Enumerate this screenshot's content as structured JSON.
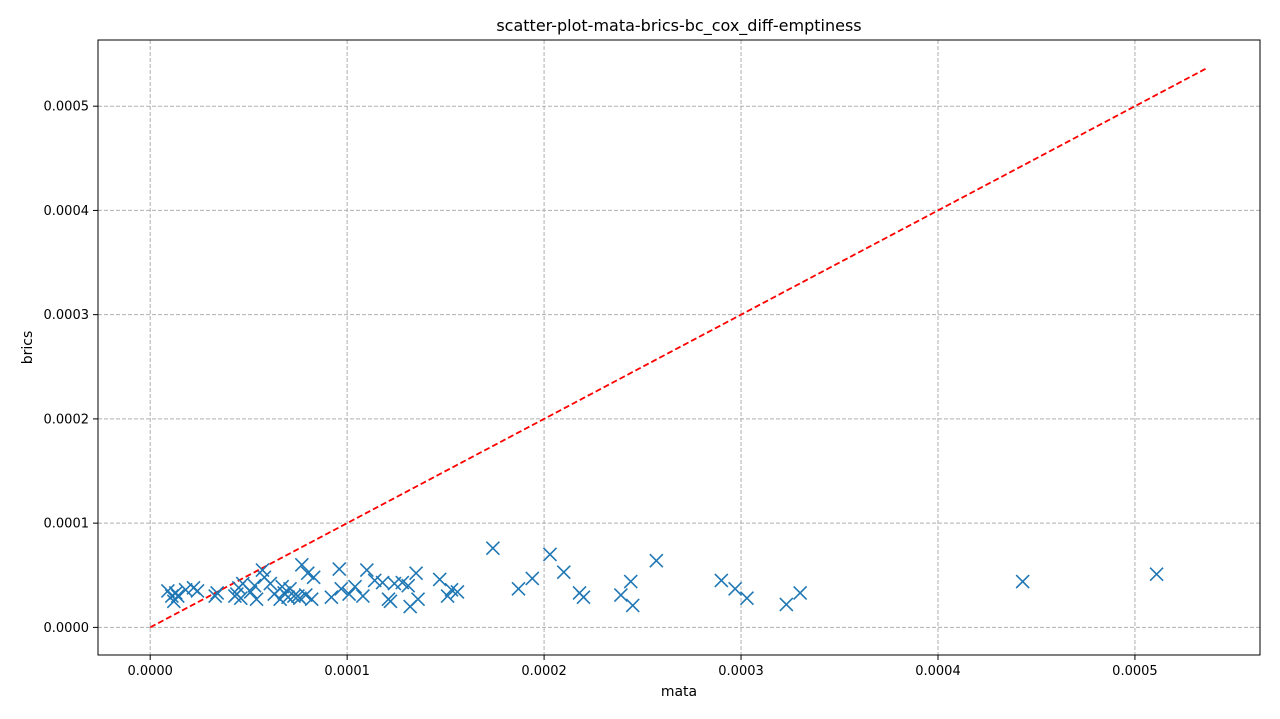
{
  "chart_data": {
    "type": "scatter",
    "title": "scatter-plot-mata-brics-bc_cox_diff-emptiness",
    "xlabel": "mata",
    "ylabel": "brics",
    "xlim": [
      -2.65e-05,
      0.0005635
    ],
    "ylim": [
      -2.65e-05,
      0.0005635
    ],
    "xticks": [
      0.0,
      0.0001,
      0.0002,
      0.0003,
      0.0004,
      0.0005
    ],
    "xtick_labels": [
      "0.0000",
      "0.0001",
      "0.0002",
      "0.0003",
      "0.0004",
      "0.0005"
    ],
    "yticks": [
      0.0,
      0.0001,
      0.0002,
      0.0003,
      0.0004,
      0.0005
    ],
    "ytick_labels": [
      "0.0000",
      "0.0001",
      "0.0002",
      "0.0003",
      "0.0004",
      "0.0005"
    ],
    "grid": true,
    "marker": "x",
    "colors": {
      "points": "#1f77b4",
      "reference_line": "#ff0000",
      "grid": "#b0b0b0"
    },
    "reference_line": {
      "style": "dashed",
      "x": [
        0.0,
        0.000537
      ],
      "y": [
        0.0,
        0.000537
      ]
    },
    "series": [
      {
        "x": [
          9e-06,
          1.1e-05,
          1.2e-05,
          1.3e-05,
          1.4e-05,
          1.8e-05,
          2.2e-05,
          2.4e-05,
          3.3e-05,
          3.4e-05,
          4.3e-05,
          4.4e-05,
          4.5e-05,
          4.6e-05,
          4.7e-05,
          5.1e-05,
          5.3e-05,
          5.4e-05,
          5.7e-05,
          5.8e-05,
          6.1e-05,
          6.3e-05,
          6.6e-05,
          6.7e-05,
          6.8e-05,
          7e-05,
          7.1e-05,
          7.3e-05,
          7.5e-05,
          7.6e-05,
          7.7e-05,
          7.9e-05,
          8e-05,
          8.2e-05,
          8.3e-05,
          9.2e-05,
          9.6e-05,
          9.7e-05,
          0.000101,
          0.000104,
          0.000108,
          0.00011,
          0.000114,
          0.000118,
          0.000121,
          0.000122,
          0.000124,
          0.000128,
          0.000131,
          0.000132,
          0.000135,
          0.000136,
          0.000147,
          0.000151,
          0.000153,
          0.000156,
          0.000174,
          0.000187,
          0.000194,
          0.000203,
          0.00021,
          0.000218,
          0.00022,
          0.000239,
          0.000244,
          0.000245,
          0.000257,
          0.00029,
          0.000297,
          0.000303,
          0.000323,
          0.00033,
          0.000443,
          0.000511
        ],
        "y": [
          3.5e-05,
          3e-05,
          2.5e-05,
          3.3e-05,
          3e-05,
          3.6e-05,
          3.8e-05,
          3.5e-05,
          3e-05,
          3.3e-05,
          3e-05,
          3.2e-05,
          3.8e-05,
          2.8e-05,
          4.2e-05,
          3.4e-05,
          4e-05,
          2.7e-05,
          5.5e-05,
          4.8e-05,
          4.2e-05,
          3.2e-05,
          2.7e-05,
          3.9e-05,
          3.3e-05,
          2.9e-05,
          3.7e-05,
          3e-05,
          3e-05,
          2.8e-05,
          6e-05,
          3.1e-05,
          5.2e-05,
          2.7e-05,
          4.8e-05,
          2.9e-05,
          5.6e-05,
          3.7e-05,
          3.2e-05,
          3.9e-05,
          3e-05,
          5.5e-05,
          4.5e-05,
          4.3e-05,
          2.7e-05,
          2.5e-05,
          4.2e-05,
          4.3e-05,
          4e-05,
          2e-05,
          5.2e-05,
          2.7e-05,
          4.6e-05,
          3e-05,
          3.6e-05,
          3.4e-05,
          7.6e-05,
          3.7e-05,
          4.7e-05,
          7e-05,
          5.3e-05,
          3.3e-05,
          2.9e-05,
          3.1e-05,
          4.4e-05,
          2.1e-05,
          6.4e-05,
          4.5e-05,
          3.7e-05,
          2.8e-05,
          2.2e-05,
          3.3e-05,
          4.4e-05,
          5.1e-05
        ]
      }
    ]
  }
}
